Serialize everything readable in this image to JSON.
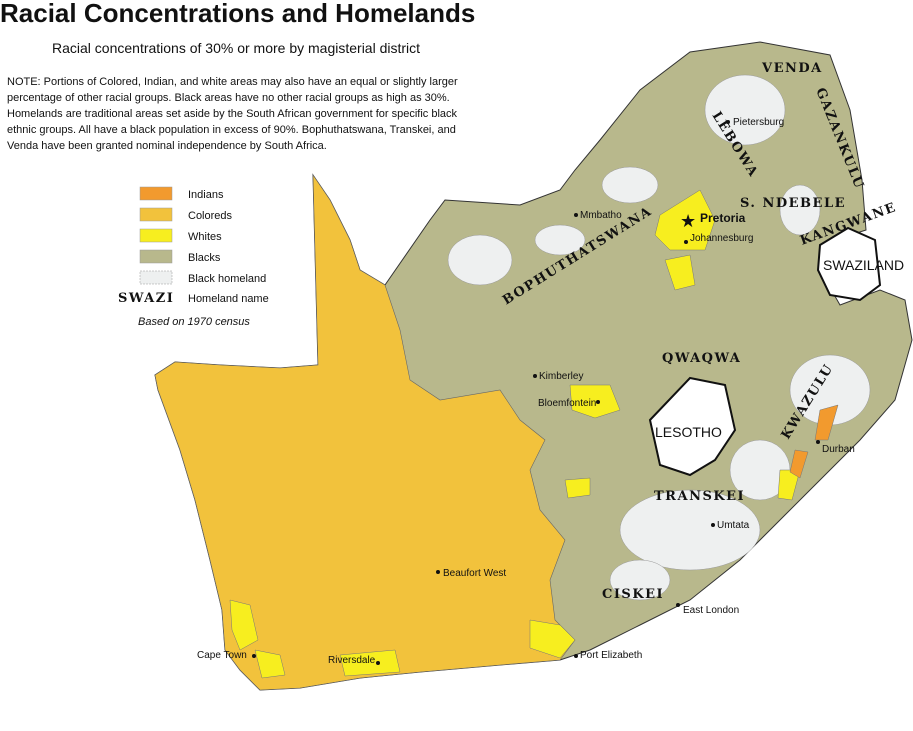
{
  "header": {
    "title": "Racial Concentrations and Homelands",
    "subtitle": "Racial concentrations of 30% or more by magisterial district"
  },
  "note": [
    "NOTE: Portions of Colored, Indian, and white areas may also have an equal or slightly larger",
    "percentage of other racial groups. Black areas have no other racial groups as high as 30%.",
    "Homelands are traditional areas set aside by the South African government for specific black",
    "ethnic groups. All have a black population in excess of 90%. Bophuthatswana, Transkei, and",
    "Venda have been granted nominal independence by South Africa."
  ],
  "legend": {
    "items": [
      {
        "label": "Indians",
        "color": "#f29a2e"
      },
      {
        "label": "Coloreds",
        "color": "#f2c23c"
      },
      {
        "label": "Whites",
        "color": "#f7ee1f"
      },
      {
        "label": "Blacks",
        "color": "#b8b88c"
      },
      {
        "label": "Black homeland",
        "color": "#eef0f0"
      }
    ],
    "homeland_sample": "SWAZI",
    "homeland_label": "Homeland name",
    "census": "Based on 1970 census"
  },
  "homelands": [
    "VENDA",
    "GAZANKULU",
    "LEBOWA",
    "S. NDEBELE",
    "KANGWANE",
    "BOPHUTHATSWANA",
    "QWAQWA",
    "KWAZULU",
    "TRANSKEI",
    "CISKEI"
  ],
  "countries": [
    "SWAZILAND",
    "LESOTHO"
  ],
  "cities": [
    "Pietersburg",
    "Mmbatho",
    "Pretoria",
    "Johannesburg",
    "Kimberley",
    "Bloemfontein",
    "Durban",
    "Umtata",
    "Beaufort West",
    "East London",
    "Cape Town",
    "Riversdale",
    "Port Elizabeth"
  ]
}
